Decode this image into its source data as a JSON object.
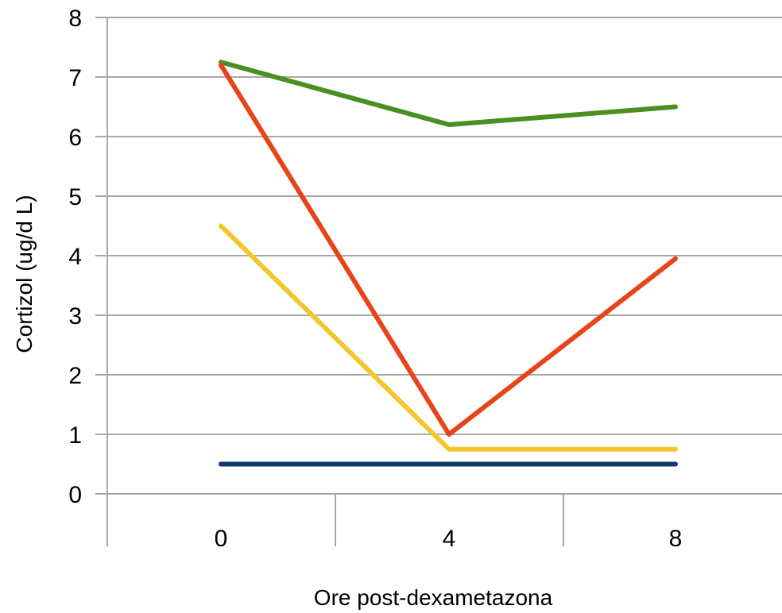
{
  "chart_data": {
    "type": "line",
    "title": "",
    "xlabel": "Ore post-dexametazona",
    "ylabel": "Cortizol (ug/d L)",
    "categories": [
      "0",
      "4",
      "8"
    ],
    "ylim": [
      0,
      8
    ],
    "yticks": [
      "0",
      "1",
      "2",
      "3",
      "4",
      "5",
      "6",
      "7",
      "8"
    ],
    "grid": "horizontal",
    "legend": "none",
    "series": [
      {
        "color": "#4a8f1f",
        "values": [
          7.25,
          6.2,
          6.5
        ]
      },
      {
        "color": "#e8441a",
        "values": [
          7.2,
          1.0,
          3.95
        ]
      },
      {
        "color": "#f2c72b",
        "values": [
          4.5,
          0.75,
          0.75
        ]
      },
      {
        "color": "#0d3a66",
        "values": [
          0.5,
          0.5,
          0.5
        ]
      }
    ]
  }
}
